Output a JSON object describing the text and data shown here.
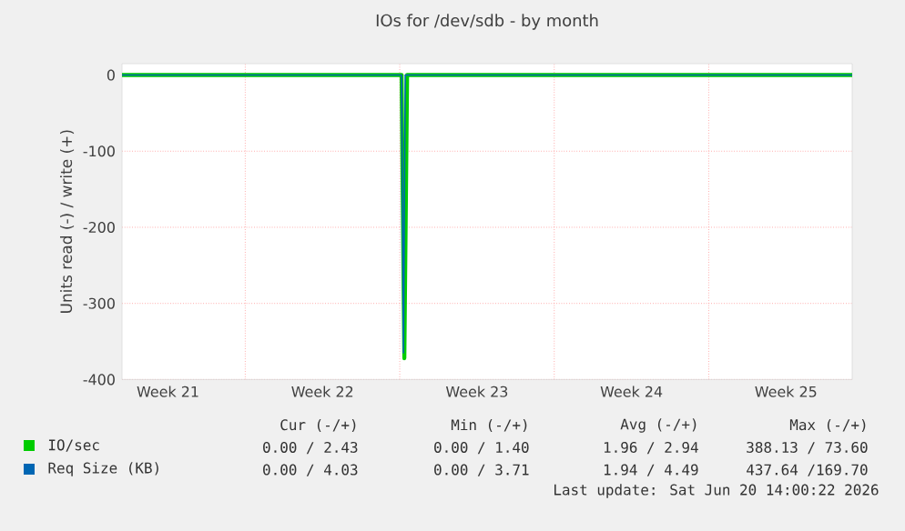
{
  "chart_data": {
    "type": "line",
    "title": "IOs for /dev/sdb - by month",
    "ylabel": "Units read (-) / write (+)",
    "xlim": [
      "2026-05-19T10:00",
      "2026-06-21T12:00"
    ],
    "xticks": [
      {
        "value": "2026-05-21T12:00",
        "label": "Week 21"
      },
      {
        "value": "2026-05-25",
        "label": null
      },
      {
        "value": "2026-05-28T12:00",
        "label": "Week 22"
      },
      {
        "value": "2026-06-01",
        "label": null
      },
      {
        "value": "2026-06-04T12:00",
        "label": "Week 23"
      },
      {
        "value": "2026-06-08",
        "label": null
      },
      {
        "value": "2026-06-11T12:00",
        "label": "Week 24"
      },
      {
        "value": "2026-06-15",
        "label": null
      },
      {
        "value": "2026-06-18T12:00",
        "label": "Week 25"
      }
    ],
    "ylim": [
      -400,
      15
    ],
    "yticks": [
      -400,
      -300,
      -200,
      -100,
      0
    ],
    "grid": true,
    "legend": "bottom",
    "series": [
      {
        "name": "IO/sec",
        "color": "#00cc00",
        "x": [
          "2026-05-19T10:00",
          "2026-05-25",
          "2026-05-31",
          "2026-06-01T02:00",
          "2026-06-01T05:00",
          "2026-06-01T08:00",
          "2026-06-10",
          "2026-06-21T12:00"
        ],
        "values": [
          0,
          0,
          0,
          0,
          -372,
          0,
          0,
          0
        ]
      },
      {
        "name": "Req Size (KB)",
        "color": "#0066b3",
        "x": [
          "2026-05-19T10:00",
          "2026-05-25",
          "2026-05-31",
          "2026-06-01T02:00",
          "2026-06-01T04:00",
          "2026-06-01T06:00",
          "2026-06-10",
          "2026-06-21T12:00"
        ],
        "values": [
          0,
          0,
          0,
          0,
          -365,
          0,
          0,
          0
        ]
      }
    ],
    "annotations": [
      "Cur (-/+)",
      "Min (-/+)",
      "Avg (-/+)",
      "Max (-/+)",
      "0.00 / 2.43",
      "0.00 / 1.40",
      "1.96 / 2.94",
      "388.13 / 73.60",
      "0.00 / 4.03",
      "0.00 / 3.71",
      "1.94 / 4.49",
      "437.64 /169.70",
      "Last update: Sat Jun 20 14:00:22 2026"
    ]
  }
}
